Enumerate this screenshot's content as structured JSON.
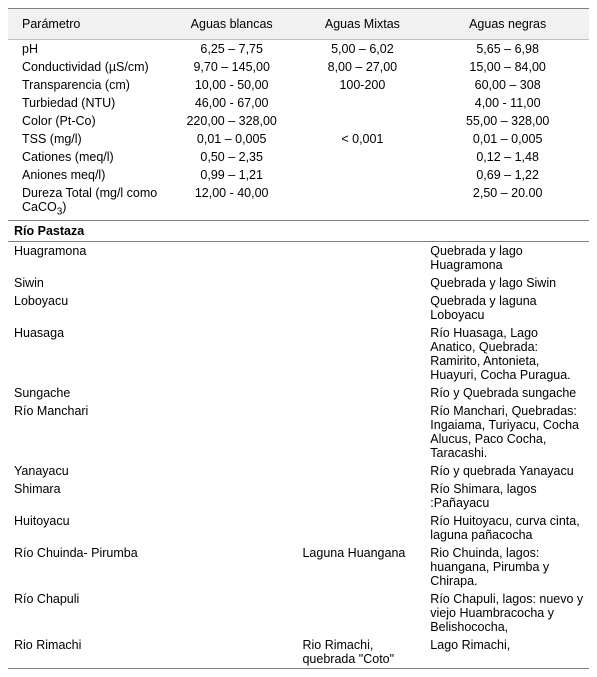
{
  "columns": {
    "param": "Parámetro",
    "blancas": "Aguas blancas",
    "mixtas": "Aguas Mixtas",
    "negras": "Aguas negras"
  },
  "params": [
    {
      "name": "pH",
      "blancas": "6,25 –  7,75",
      "mixtas": "5,00 – 6,02",
      "negras": "5,65 – 6,98"
    },
    {
      "name": "Conductividad (µS/cm)",
      "blancas": "9,70 – 145,00",
      "mixtas": "8,00 – 27,00",
      "negras": "15,00 – 84,00"
    },
    {
      "name": "Transparencia (cm)",
      "blancas": "10,00 - 50,00",
      "mixtas": "100-200",
      "negras": "60,00 – 308"
    },
    {
      "name": "Turbiedad  (NTU)",
      "blancas": "46,00 - 67,00",
      "mixtas": "",
      "negras": "4,00 -  11,00"
    },
    {
      "name": "Color  (Pt-Co)",
      "blancas": "220,00 – 328,00",
      "mixtas": "",
      "negras": "55,00 – 328,00"
    },
    {
      "name": "TSS     (mg/l)",
      "blancas": "0,01 – 0,005",
      "mixtas": "< 0,001",
      "negras": "0,01 – 0,005"
    },
    {
      "name": "Cationes  (meq/l)",
      "blancas": "0,50 – 2,35",
      "mixtas": "",
      "negras": "0,12 – 1,48"
    },
    {
      "name": "Aniones   meq/l)",
      "blancas": "0,99 – 1,21",
      "mixtas": "",
      "negras": "0,69 – 1,22"
    },
    {
      "name": "Dureza Total (mg/l como CaCO3)",
      "name_html": "Dureza Total (mg/l como CaCO<sub>3</sub>)",
      "blancas": "12,00 - 40,00",
      "mixtas": "",
      "negras": "2,50 – 20.00"
    }
  ],
  "section_title": "Río Pastaza",
  "rivers": [
    {
      "name": "Huagramona",
      "mixta": "",
      "desc": "Quebrada y lago Huagramona"
    },
    {
      "name": "Siwin",
      "mixta": "",
      "desc": "Quebrada  y lago Siwin"
    },
    {
      "name": "Loboyacu",
      "mixta": "",
      "desc": "Quebrada y laguna Loboyacu"
    },
    {
      "name": "Huasaga",
      "mixta": "",
      "desc": "Río Huasaga, Lago Anatico, Quebrada: Ramirito, Antonieta, Huayuri,  Cocha Puragua."
    },
    {
      "name": "Sungache",
      "mixta": "",
      "desc": "Río y Quebrada sungache"
    },
    {
      "name": "Río Manchari",
      "mixta": "",
      "desc": "Río Manchari, Quebradas: Ingaiama, Turiyacu, Cocha Alucus, Paco Cocha, Taracashi."
    },
    {
      "name": "Yanayacu",
      "mixta": "",
      "desc": "Río y quebrada Yanayacu"
    },
    {
      "name": "Shimara",
      "mixta": "",
      "desc": "Río Shimara, lagos :Pañayacu"
    },
    {
      "name": "Huitoyacu",
      "mixta": "",
      "desc": "Río Huitoyacu, curva cinta, laguna pañacocha"
    },
    {
      "name": "Río Chuinda- Pirumba",
      "mixta": "Laguna Huangana",
      "desc": "Rio Chuinda, lagos: huangana, Pirumba y Chirapa."
    },
    {
      "name": "Río Chapuli",
      "mixta": "",
      "desc": "Río Chapuli, lagos: nuevo y viejo Huambracocha  y Belishococha,"
    },
    {
      "name": "Rio Rimachi",
      "mixta": "Rio Rimachi, quebrada \"Coto\"",
      "desc": "Lago Rimachi,"
    }
  ],
  "style": {
    "font_family": "Arial",
    "base_fontsize_pt": 9,
    "text_color": "#000000",
    "background": "#ffffff",
    "header_bg": "#f1f1f1",
    "border_color_dark": "#808080",
    "border_color_light": "#c0c0c0",
    "column_widths_pct": [
      27,
      23,
      22,
      28
    ]
  }
}
